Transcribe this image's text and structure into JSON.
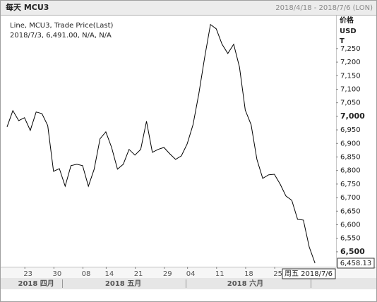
{
  "header": {
    "title": "每天 MCU3",
    "range": "2018/4/18 - 2018/7/6 (LON)"
  },
  "chart_data": {
    "type": "line",
    "legend_detail": "2018/7/3, 6,491.00, N/A, N/A",
    "y_axis_title": [
      "价格",
      "USD",
      "T"
    ],
    "cursor_label": "周五 2018/7/6",
    "categories": [
      null,
      null,
      null,
      "23",
      null,
      null,
      null,
      null,
      "30",
      null,
      null,
      null,
      null,
      "08",
      null,
      null,
      null,
      "14",
      null,
      null,
      null,
      null,
      "21",
      null,
      null,
      null,
      null,
      "29",
      null,
      null,
      null,
      "04",
      null,
      null,
      null,
      null,
      "11",
      null,
      null,
      null,
      null,
      "18",
      null,
      null,
      null,
      null,
      "25",
      null,
      null,
      null,
      null,
      null,
      null,
      null
    ],
    "month_categories": [
      null,
      null,
      null,
      null,
      null,
      "2018 四月",
      null,
      null,
      null,
      null,
      null,
      null,
      null,
      null,
      null,
      null,
      null,
      null,
      null,
      null,
      "2018 五月",
      null,
      null,
      null,
      null,
      null,
      null,
      null,
      null,
      null,
      null,
      null,
      null,
      null,
      null,
      null,
      null,
      null,
      null,
      null,
      null,
      "2018 六月",
      null,
      null,
      null,
      null,
      null,
      null,
      null,
      null,
      null,
      null,
      null,
      null
    ],
    "series": [
      {
        "name": "Line, MCU3, Trade Price(Last)",
        "color": "#000000",
        "values": [
          6961,
          7021,
          6984,
          6995,
          6948,
          7016,
          7010,
          6966,
          6797,
          6807,
          6742,
          6818,
          6823,
          6818,
          6742,
          6805,
          6917,
          6943,
          6885,
          6805,
          6823,
          6878,
          6857,
          6878,
          6982,
          6867,
          6878,
          6885,
          6862,
          6841,
          6854,
          6898,
          6969,
          7083,
          7216,
          7339,
          7323,
          7266,
          7232,
          7266,
          7182,
          7023,
          6969,
          6841,
          6771,
          6784,
          6786,
          6750,
          6706,
          6690,
          6620,
          6617,
          6518,
          6458.13
        ],
        "value_labels": [
          null,
          null,
          null,
          null,
          null,
          null,
          null,
          null,
          null,
          null,
          null,
          null,
          null,
          null,
          null,
          null,
          null,
          null,
          null,
          null,
          null,
          null,
          null,
          null,
          null,
          null,
          null,
          null,
          null,
          null,
          null,
          null,
          null,
          null,
          null,
          null,
          null,
          null,
          null,
          null,
          null,
          null,
          null,
          null,
          null,
          null,
          null,
          null,
          null,
          null,
          null,
          null,
          null,
          "6,458.13"
        ]
      }
    ],
    "ylim": [
      6445,
      7372
    ],
    "yticks": [
      {
        "value": 6500,
        "label": "6,500"
      },
      {
        "value": 6550,
        "label": "6,550"
      },
      {
        "value": 6600,
        "label": "6,600"
      },
      {
        "value": 6650,
        "label": "6,650"
      },
      {
        "value": 6700,
        "label": "6,700"
      },
      {
        "value": 6750,
        "label": "6,750"
      },
      {
        "value": 6800,
        "label": "6,800"
      },
      {
        "value": 6850,
        "label": "6,850"
      },
      {
        "value": 6900,
        "label": "6,900"
      },
      {
        "value": 6950,
        "label": "6,950"
      },
      {
        "value": 7000,
        "label": "7,000"
      },
      {
        "value": 7050,
        "label": "7,050"
      },
      {
        "value": 7100,
        "label": "7,100"
      },
      {
        "value": 7150,
        "label": "7,150"
      },
      {
        "value": 7200,
        "label": "7,200"
      },
      {
        "value": 7250,
        "label": "7,250"
      }
    ],
    "grid": false
  }
}
